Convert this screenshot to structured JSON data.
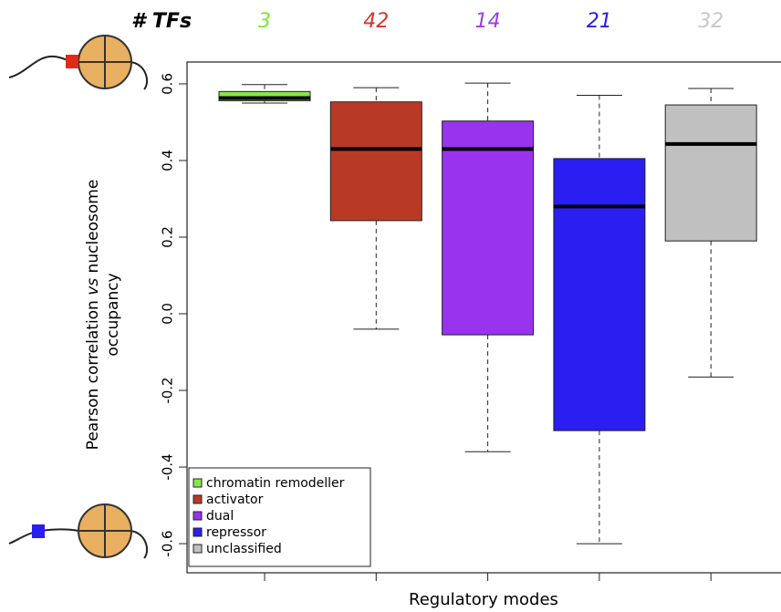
{
  "chart_data": {
    "type": "box",
    "header": "# TFs",
    "counts": [
      {
        "value": 3,
        "color": "#7be82f"
      },
      {
        "value": 42,
        "color": "#d8332a"
      },
      {
        "value": 14,
        "color": "#9b3fe8"
      },
      {
        "value": 21,
        "color": "#2a1bea"
      },
      {
        "value": 32,
        "color": "#c8c8c8"
      }
    ],
    "ylabel": {
      "before": "Pearson correlation ",
      "italic": "vs",
      "after": " nucleosome",
      "line2": "occupancy"
    },
    "xlabel": "Regulatory modes",
    "ylim": [
      -0.676,
      0.657
    ],
    "yticks": [
      0.6,
      0.4,
      0.2,
      {
        "value": 0,
        "label": "0.0"
      },
      -0.2,
      -0.4,
      -0.6
    ],
    "boxes": [
      {
        "name": "chromatin remodeller",
        "color": "#85e84a",
        "min": 0.55,
        "q1": 0.556,
        "median": 0.563,
        "q3": 0.58,
        "max": 0.598
      },
      {
        "name": "activator",
        "color": "#b83a26",
        "min": -0.04,
        "q1": 0.243,
        "median": 0.43,
        "q3": 0.553,
        "max": 0.59
      },
      {
        "name": "dual",
        "color": "#9933ee",
        "min": -0.36,
        "q1": -0.055,
        "median": 0.43,
        "q3": 0.503,
        "max": 0.602
      },
      {
        "name": "repressor",
        "color": "#2b1ef0",
        "min": -0.6,
        "q1": -0.305,
        "median": 0.28,
        "q3": 0.405,
        "max": 0.57
      },
      {
        "name": "unclassified",
        "color": "#c0c0c0",
        "min": -0.165,
        "q1": 0.19,
        "median": 0.443,
        "q3": 0.545,
        "max": 0.588
      }
    ],
    "legend": "bottom-left"
  }
}
